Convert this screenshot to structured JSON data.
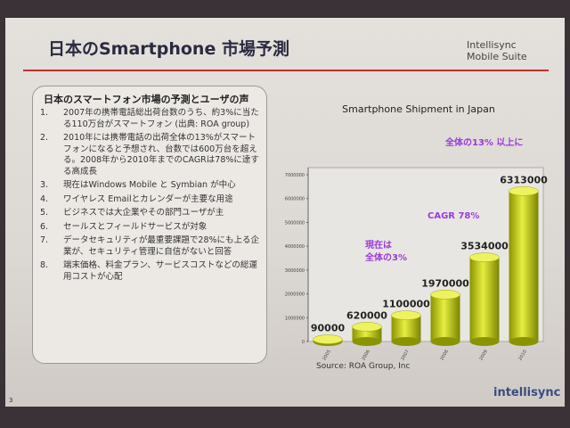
{
  "header": {
    "title": "日本のSmartphone 市場予測",
    "logo": "Intellisync Mobile Suite"
  },
  "panel": {
    "title": "日本のスマートフォン市場の予測とユーザの声",
    "items": [
      {
        "number": "1.",
        "text": "2007年の携帯電話総出荷台数のうち、約3%に当たる110万台がスマートフォン (出典: ROA group)"
      },
      {
        "number": "2.",
        "text": "2010年には携帯電話の出荷全体の13%がスマートフォンになると予想され、台数では600万台を超える。2008年から2010年までのCAGRは78%に達する高成長"
      },
      {
        "number": "3.",
        "text": "現在はWindows Mobile と Symbian が中心"
      },
      {
        "number": "4.",
        "text": "ワイヤレス Emailとカレンダーが主要な用途"
      },
      {
        "number": "5.",
        "text": "ビジネスでは大企業やその部門ユーザが主"
      },
      {
        "number": "6.",
        "text": "セールスとフィールドサービスが対象"
      },
      {
        "number": "7.",
        "text": "データセキュリティが最重要課題で28%にも上る企業が、セキュリティ管理に自信がないと回答"
      },
      {
        "number": "8.",
        "text": "端末価格、料金プラン、サービスコストなどの総運用コストが心配"
      }
    ]
  },
  "chart_data": {
    "type": "bar",
    "title": "Smartphone Shipment in Japan",
    "categories": [
      "2005",
      "2006",
      "2007",
      "2008",
      "2009",
      "2010"
    ],
    "values": [
      90000,
      620000,
      1100000,
      1970000,
      3534000,
      6313000
    ],
    "color": "#c8d400",
    "ylim": [
      0,
      7000000
    ],
    "yticks": [
      0,
      1000000,
      2000000,
      3000000,
      4000000,
      5000000,
      6000000,
      7000000
    ],
    "annotations": [
      "全体の13% 以上に",
      "CAGR 78%",
      "現在は",
      "全体の3%"
    ],
    "source": "Source: ROA Group, Inc"
  },
  "footer": {
    "brand": "intellisync",
    "page": "3"
  }
}
